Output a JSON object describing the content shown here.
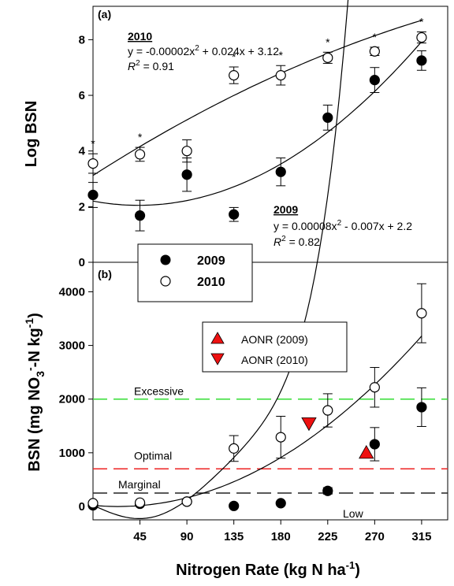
{
  "figure": {
    "x_axis": {
      "label": "Nitrogen Rate (kg N ha",
      "label_sup": "-1",
      "label_end": ")",
      "ticks": [
        45,
        90,
        135,
        180,
        225,
        270,
        315
      ],
      "range": [
        0,
        340
      ]
    }
  },
  "chart_data": [
    {
      "type": "scatter",
      "panel_label": "(a)",
      "ylabel": "Log BSN",
      "ylim": [
        0,
        9.2
      ],
      "yticks": [
        0,
        2,
        4,
        6,
        8
      ],
      "legend": {
        "placement": "bottom-left",
        "entries": [
          {
            "label": "2009",
            "marker": "filled-circle"
          },
          {
            "label": "2010",
            "marker": "open-circle"
          }
        ]
      },
      "series": [
        {
          "name": "2009",
          "marker": "filled-circle",
          "x": [
            0,
            45,
            90,
            135,
            180,
            225,
            270,
            315
          ],
          "y": [
            2.42,
            1.68,
            3.15,
            1.72,
            3.25,
            5.2,
            6.55,
            7.25
          ],
          "err": [
            0.45,
            0.55,
            0.6,
            0.25,
            0.5,
            0.45,
            0.45,
            0.35
          ],
          "fit": {
            "a": 8e-05,
            "b": -0.007,
            "c": 2.2,
            "x_range": [
              0,
              315
            ]
          },
          "equation": {
            "title": "2009",
            "line1": "y = 0.00008x",
            "line1_sup": "2",
            "line1_rest": " - 0.007x + 2.2",
            "r2_label": "R",
            "r2_sup": "2",
            "r2_value": " = 0.82"
          }
        },
        {
          "name": "2010",
          "marker": "open-circle",
          "x": [
            0,
            45,
            90,
            135,
            180,
            225,
            270,
            315
          ],
          "y": [
            3.55,
            3.88,
            4.0,
            6.72,
            6.72,
            7.35,
            7.58,
            8.08
          ],
          "err": [
            0.35,
            0.25,
            0.4,
            0.3,
            0.35,
            0.2,
            0.15,
            0.2
          ],
          "significance": "*",
          "significant_x": [
            0,
            45,
            135,
            180,
            225,
            270,
            315
          ],
          "fit": {
            "a": -2e-05,
            "b": 0.024,
            "c": 3.12,
            "x_range": [
              0,
              315
            ]
          },
          "equation": {
            "title": "2010",
            "line1": "y = -0.00002x",
            "line1_sup": "2",
            "line1_rest": " + 0.024x + 3.12",
            "r2_label": "R",
            "r2_sup": "2",
            "r2_value": " = 0.91"
          }
        }
      ]
    },
    {
      "type": "scatter",
      "panel_label": "(b)",
      "ylabel_parts": [
        "BSN (mg NO",
        "3",
        "-",
        "-N kg",
        "-1",
        ")"
      ],
      "ylim": [
        -250,
        4550
      ],
      "yticks": [
        0,
        1000,
        2000,
        3000,
        4000
      ],
      "legend": {
        "placement": "top-center",
        "entries": [
          {
            "label": "AONR (2009)",
            "marker": "triangle-up",
            "color": "#ee1111"
          },
          {
            "label": "AONR (2010)",
            "marker": "triangle-down",
            "color": "#ee1111"
          }
        ]
      },
      "series": [
        {
          "name": "2009",
          "marker": "filled-circle",
          "x": [
            0,
            45,
            90,
            135,
            180,
            225,
            270,
            315
          ],
          "y": [
            20,
            50,
            90,
            10,
            60,
            290,
            1160,
            1850
          ],
          "err": [
            0,
            0,
            0,
            0,
            0,
            60,
            310,
            360
          ],
          "fit_exp": {
            "A": 3.12,
            "B": 0.0248,
            "C": 300,
            "D": 0.02,
            "x_range": [
              0,
              315
            ]
          }
        },
        {
          "name": "2010",
          "marker": "open-circle",
          "x": [
            0,
            45,
            90,
            135,
            180,
            225,
            270,
            315
          ],
          "y": [
            60,
            70,
            90,
            1080,
            1290,
            1790,
            2220,
            3600
          ],
          "err": [
            0,
            0,
            0,
            240,
            390,
            310,
            370,
            550
          ],
          "fit_quad": {
            "a": 0.0375,
            "b": -1.8,
            "c": 20,
            "x_range": [
              0,
              315
            ]
          }
        },
        {
          "name": "AONR (2009)",
          "marker": "triangle-up",
          "color": "#ee1111",
          "x": [
            262
          ],
          "y": [
            1000
          ]
        },
        {
          "name": "AONR (2010)",
          "marker": "triangle-down",
          "color": "#ee1111",
          "x": [
            207
          ],
          "y": [
            1550
          ]
        }
      ],
      "reference_lines": [
        {
          "y": 2000,
          "color": "#33dd33",
          "label": "Excessive",
          "style": "dashed"
        },
        {
          "y": 700,
          "color": "#ee2222",
          "label": "Optimal",
          "style": "dashed"
        },
        {
          "y": 250,
          "color": "#222222",
          "label": "Marginal",
          "style": "dashed"
        }
      ],
      "zone_labels": [
        "Excessive",
        "Optimal",
        "Marginal",
        "Low"
      ]
    }
  ]
}
